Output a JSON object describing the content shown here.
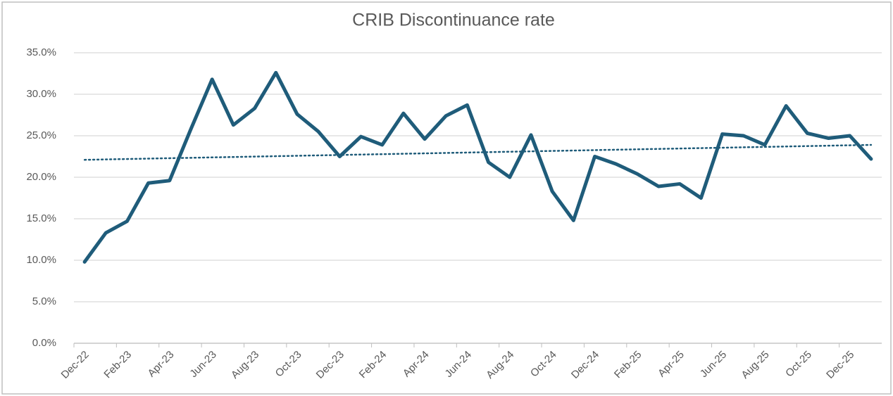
{
  "chart_data": {
    "type": "line",
    "title": "CRIB Discontinuance rate",
    "categories": [
      "Dec-22",
      null,
      "Feb-23",
      null,
      "Apr-23",
      null,
      "Jun-23",
      null,
      "Aug-23",
      null,
      "Oct-23",
      null,
      "Dec-23",
      null,
      "Feb-24",
      null,
      "Apr-24",
      null,
      "Jun-24",
      null,
      "Aug-24",
      null,
      "Oct-24",
      null,
      "Dec-24",
      null,
      "Feb-25",
      null,
      "Apr-25",
      null,
      "Jun-25",
      null,
      "Aug-25",
      null,
      "Oct-25",
      null,
      "Dec-25",
      null
    ],
    "series": [
      {
        "color": "#1f5c7a",
        "values": [
          9.8,
          13.3,
          14.7,
          19.3,
          19.6,
          25.8,
          31.8,
          26.3,
          28.3,
          32.6,
          27.6,
          25.5,
          22.5,
          24.9,
          23.9,
          27.7,
          24.6,
          27.4,
          28.7,
          21.8,
          20.0,
          25.1,
          18.3,
          14.8,
          22.5,
          21.6,
          20.4,
          18.9,
          19.2,
          17.5,
          25.2,
          25.0,
          23.9,
          28.6,
          25.3,
          24.7,
          25.0,
          22.2
        ]
      }
    ],
    "trendline": {
      "start": 22.1,
      "end": 23.9,
      "color": "#1f5c7a"
    },
    "ylim": [
      0,
      35
    ],
    "yticks": [
      {
        "value": 0,
        "label": "0.0%"
      },
      {
        "value": 5,
        "label": "5.0%"
      },
      {
        "value": 10,
        "label": "10.0%"
      },
      {
        "value": 15,
        "label": "15.0%"
      },
      {
        "value": 20,
        "label": "20.0%"
      },
      {
        "value": 25,
        "label": "25.0%"
      },
      {
        "value": 30,
        "label": "30.0%"
      },
      {
        "value": 35,
        "label": "35.0%"
      }
    ],
    "grid": true
  }
}
